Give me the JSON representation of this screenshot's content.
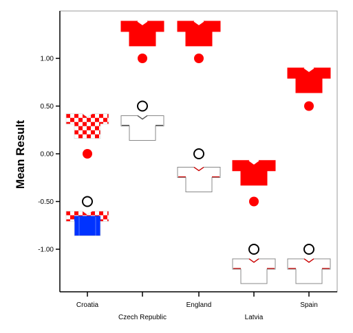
{
  "chart_data": {
    "type": "scatter",
    "ylabel": "Mean Result",
    "categories": [
      "Croatia",
      "Czech Republic",
      "England",
      "Latvia",
      "Spain"
    ],
    "ylim": [
      -1.4,
      1.4
    ],
    "yticks": [
      {
        "value": 1.0,
        "label": "1.00"
      },
      {
        "value": 0.5,
        "label": "0.50"
      },
      {
        "value": 0.0,
        "label": "0.00"
      },
      {
        "value": -0.5,
        "label": "-0.50"
      },
      {
        "value": -1.0,
        "label": "-1.00"
      }
    ],
    "grid": false,
    "series": [
      {
        "marker": "filled-circle",
        "color": "#ff0000",
        "values": [
          0.0,
          1.0,
          1.0,
          -0.5,
          0.5
        ]
      },
      {
        "marker": "open-circle",
        "color": "#000000",
        "values": [
          -0.5,
          0.5,
          0.0,
          -1.0,
          -1.0
        ]
      }
    ],
    "shirts": [
      {
        "category": "Croatia",
        "value": 0.29,
        "style": "red-white-checkered",
        "colors": [
          "#ff0000",
          "#ffffff"
        ]
      },
      {
        "category": "Croatia",
        "value": -0.73,
        "style": "blue-body-checkered-sleeves",
        "colors": [
          "#0033ff",
          "#ff0000",
          "#ffffff"
        ]
      },
      {
        "category": "Czech Republic",
        "value": 1.26,
        "style": "solid-red",
        "colors": [
          "#ff0000"
        ]
      },
      {
        "category": "Czech Republic",
        "value": 0.27,
        "style": "white",
        "colors": [
          "#ffffff",
          "#777777"
        ]
      },
      {
        "category": "England",
        "value": 1.26,
        "style": "solid-red",
        "colors": [
          "#ff0000"
        ]
      },
      {
        "category": "England",
        "value": -0.27,
        "style": "white-red-trim",
        "colors": [
          "#ffffff",
          "#cc0000"
        ]
      },
      {
        "category": "Latvia",
        "value": -0.2,
        "style": "solid-red",
        "colors": [
          "#ff0000"
        ]
      },
      {
        "category": "Latvia",
        "value": -1.23,
        "style": "white-red-trim",
        "colors": [
          "#ffffff",
          "#cc0000"
        ]
      },
      {
        "category": "Spain",
        "value": 0.77,
        "style": "solid-red",
        "colors": [
          "#ff0000"
        ]
      },
      {
        "category": "Spain",
        "value": -1.23,
        "style": "white-red-trim",
        "colors": [
          "#ffffff",
          "#cc0000"
        ]
      }
    ]
  }
}
